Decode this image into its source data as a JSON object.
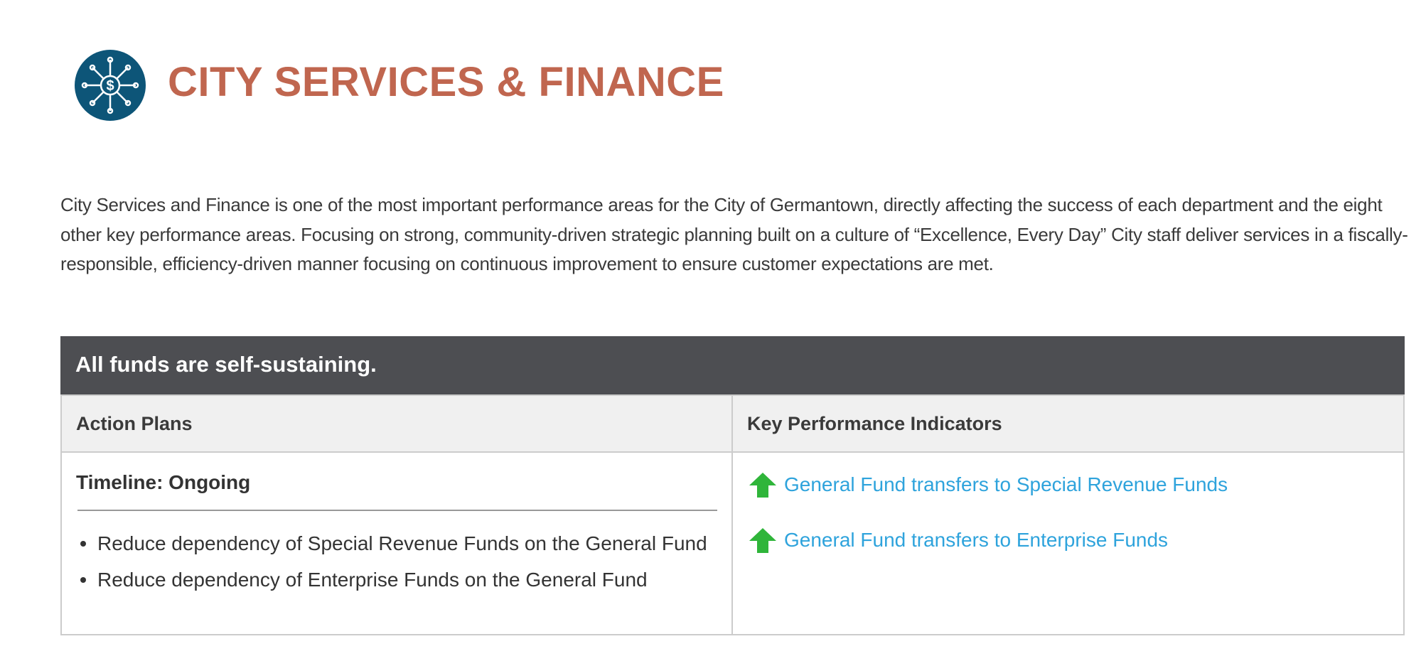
{
  "header": {
    "title": "CITY SERVICES & FINANCE"
  },
  "intro": "City Services and Finance is one of the most important performance areas for the City of Germantown, directly affecting the success of each department and the eight other key performance areas. Focusing on strong, community-driven strategic planning built on a culture of “Excellence, Every Day” City staff deliver services in a fiscally-responsible, efficiency-driven manner focusing on continuous improvement to ensure customer expectations are met.",
  "table": {
    "heading": "All funds are self-sustaining.",
    "columns": [
      "Action Plans",
      "Key Performance Indicators"
    ],
    "action_plans": {
      "timeline": "Timeline: Ongoing",
      "items": [
        "Reduce dependency of Special Revenue Funds on the General Fund",
        "Reduce dependency of Enterprise Funds on the General Fund"
      ]
    },
    "kpis": [
      "General Fund transfers to Special Revenue Funds",
      "General Fund transfers to Enterprise Funds"
    ]
  }
}
